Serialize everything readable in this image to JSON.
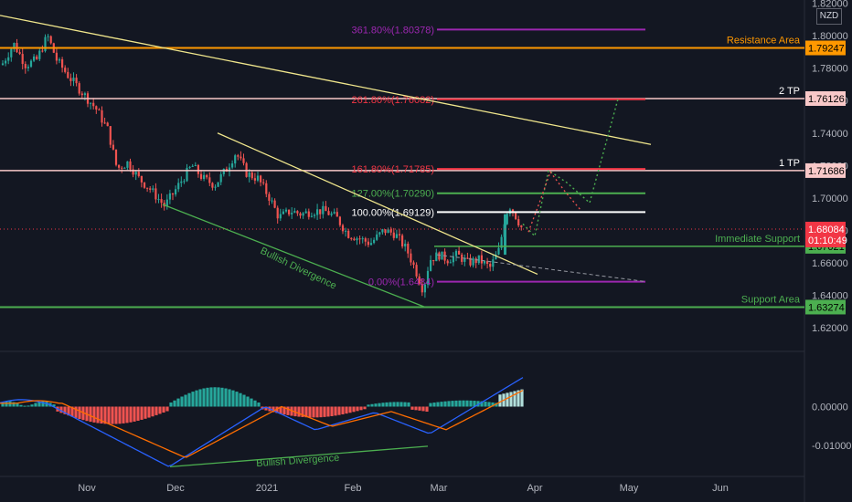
{
  "header": {
    "currency": "NZD"
  },
  "chart_data": {
    "type": "candlestick",
    "main": {
      "ylim": [
        1.606,
        1.822
      ],
      "y_ticks": [
        "1.62000",
        "1.64000",
        "1.66000",
        "1.68000",
        "1.70000",
        "1.72000",
        "1.74000",
        "1.76000",
        "1.78000",
        "1.80000",
        "1.82000"
      ],
      "x_ticks": [
        "Nov",
        "Dec",
        "2021",
        "Feb",
        "Mar",
        "Apr",
        "May",
        "Jun"
      ],
      "current_price": {
        "label": "1.68084",
        "countdown": "01:10:49",
        "color": "#f23645"
      },
      "horizontal_levels": [
        {
          "name": "Resistance Area",
          "value": 1.79247,
          "label": "1.79247",
          "color": "#ff9800",
          "tag_text": "#000000"
        },
        {
          "name": "2 TP",
          "value": 1.76126,
          "label": "1.76126",
          "color": "#f8c8c8",
          "tag_text": "#000000"
        },
        {
          "name": "1 TP",
          "value": 1.71686,
          "label": "1.71686",
          "color": "#f8c8c8",
          "tag_text": "#000000"
        },
        {
          "name": "Immediate Support",
          "value": 1.67021,
          "label": "1.67021",
          "color": "#4caf50",
          "tag_text": "#000000"
        },
        {
          "name": "Support Area",
          "value": 1.63274,
          "label": "1.63274",
          "color": "#4caf50",
          "tag_text": "#000000"
        }
      ],
      "fib_levels": [
        {
          "text": "361.80%(1.80378)",
          "value": 1.80378,
          "color": "#9c27b0"
        },
        {
          "text": "261.80%(1.76082)",
          "value": 1.76082,
          "color": "#f23645"
        },
        {
          "text": "161.80%(1.71785)",
          "value": 1.71785,
          "color": "#f23645"
        },
        {
          "text": "127.00%(1.70290)",
          "value": 1.7029,
          "color": "#4caf50"
        },
        {
          "text": "100.00%(1.69129)",
          "value": 1.69129,
          "color": "#ffffff"
        },
        {
          "text": "0.00%(1.6484)",
          "value": 1.6484,
          "color": "#9c27b0"
        }
      ],
      "annotations": [
        "Bullish Divergence"
      ]
    },
    "macd": {
      "ylim": [
        -0.018,
        0.014
      ],
      "y_ticks": [
        "0.00000",
        "-0.01000"
      ],
      "annotations": [
        "Bullish Divergence"
      ]
    }
  }
}
